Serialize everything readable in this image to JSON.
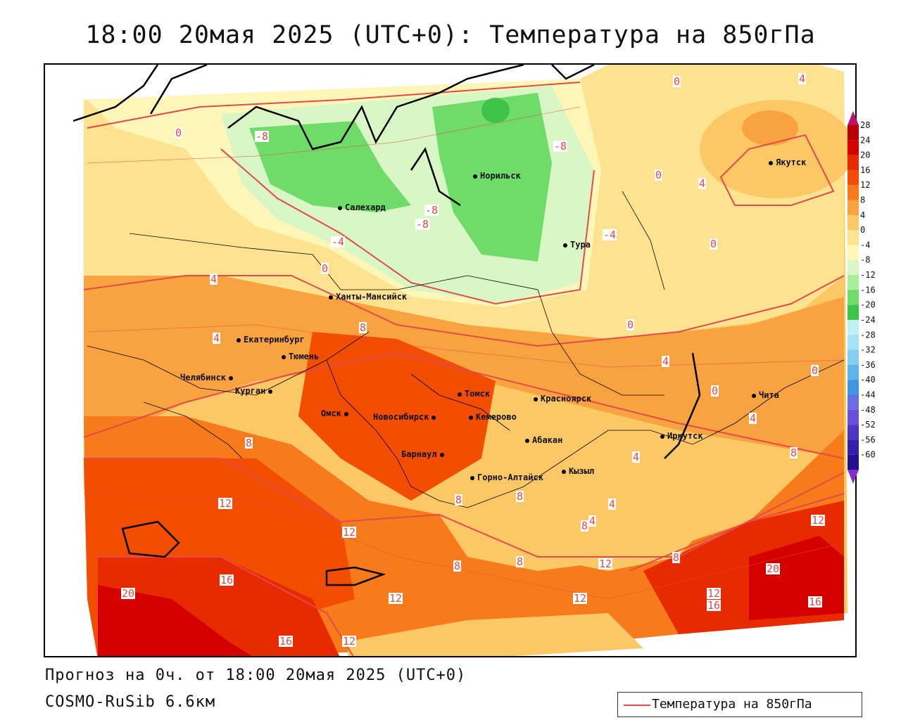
{
  "title": "18:00 20мая 2025 (UTC+0): Температура на 850гПа",
  "footer": {
    "forecast": "Прогноз на 0ч. от 18:00 20мая 2025 (UTC+0)",
    "model": "COSMO-RuSib 6.6км"
  },
  "legend": {
    "label": "Температура на 850гПа",
    "color": "#e34a4a"
  },
  "colorbar": {
    "ticks": [
      "28",
      "24",
      "20",
      "16",
      "12",
      "8",
      "4",
      "0",
      "-4",
      "-8",
      "-12",
      "-16",
      "-20",
      "-24",
      "-28",
      "-32",
      "-36",
      "-40",
      "-44",
      "-48",
      "-52",
      "-56",
      "-60"
    ],
    "colors": [
      "#b80000",
      "#d40000",
      "#e82a00",
      "#f24d00",
      "#f77b1a",
      "#f9a340",
      "#fcc866",
      "#fde38f",
      "#fff6b8",
      "#d8f7c4",
      "#a8ef9c",
      "#6fdc6a",
      "#3fc44a",
      "#bff0f4",
      "#a4e4f6",
      "#84cff0",
      "#5fb5ea",
      "#3f96e0",
      "#6b6ee0",
      "#6a4fd8",
      "#4e36c2",
      "#331fa8",
      "#22128c"
    ]
  },
  "cities": [
    {
      "name": "Якутск"
    },
    {
      "name": "Норильск"
    },
    {
      "name": "Салехард"
    },
    {
      "name": "Тура"
    },
    {
      "name": "Ханты-Мансийск"
    },
    {
      "name": "Екатеринбург"
    },
    {
      "name": "Тюмень"
    },
    {
      "name": "Челябинск"
    },
    {
      "name": "Курган"
    },
    {
      "name": "Омск"
    },
    {
      "name": "Новосибирск"
    },
    {
      "name": "Томск"
    },
    {
      "name": "Кемерово"
    },
    {
      "name": "Красноярск"
    },
    {
      "name": "Барнаул"
    },
    {
      "name": "Абакан"
    },
    {
      "name": "Иркутск"
    },
    {
      "name": "Чита"
    },
    {
      "name": "Горно-Алтайск"
    },
    {
      "name": "Кызыл"
    }
  ],
  "isolines": [
    "0",
    "4",
    "-8",
    "-8",
    "-8",
    "-4",
    "0",
    "4",
    "-4",
    "0",
    "0",
    "0",
    "4",
    "8",
    "4",
    "0",
    "4",
    "0",
    "4",
    "-8",
    "8",
    "12",
    "12",
    "16",
    "20",
    "16",
    "12",
    "16",
    "12",
    "20",
    "12",
    "16",
    "8",
    "8",
    "12",
    "12",
    "8",
    "4",
    "4",
    "0",
    "8",
    "8",
    "8",
    "8",
    "4",
    "12"
  ]
}
